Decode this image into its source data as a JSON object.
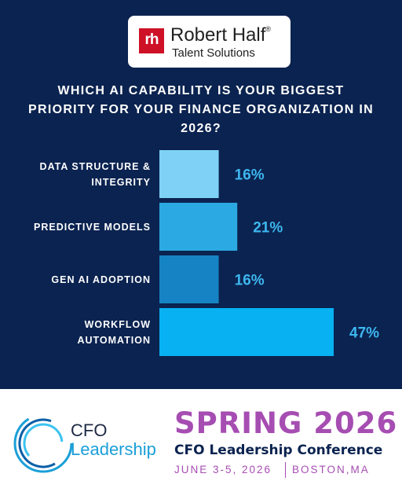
{
  "header": {
    "logo_mark": "rh",
    "brand": "Robert Half",
    "brand_mark": "®",
    "brand_sub": "Talent Solutions"
  },
  "chart_data": {
    "type": "bar",
    "orientation": "horizontal",
    "title": "WHICH AI CAPABILITY IS YOUR BIGGEST PRIORITY FOR YOUR FINANCE ORGANIZATION IN 2026?",
    "categories": [
      "DATA STRUCTURE & INTEGRITY",
      "PREDICTIVE MODELS",
      "GEN AI ADOPTION",
      "WORKFLOW AUTOMATION"
    ],
    "values": [
      16,
      21,
      16,
      47
    ],
    "value_labels": [
      "16%",
      "21%",
      "16%",
      "47%"
    ],
    "colors": [
      "#7fd2f6",
      "#2ba9e2",
      "#1683c4",
      "#08b1f2"
    ]
  },
  "footer": {
    "logo_top": "CFO",
    "logo_bottom": "Leadership",
    "event": "SPRING 2026",
    "conference": "CFO Leadership Conference",
    "date": "JUNE 3-5, 2026",
    "location": "BOSTON,MA"
  }
}
